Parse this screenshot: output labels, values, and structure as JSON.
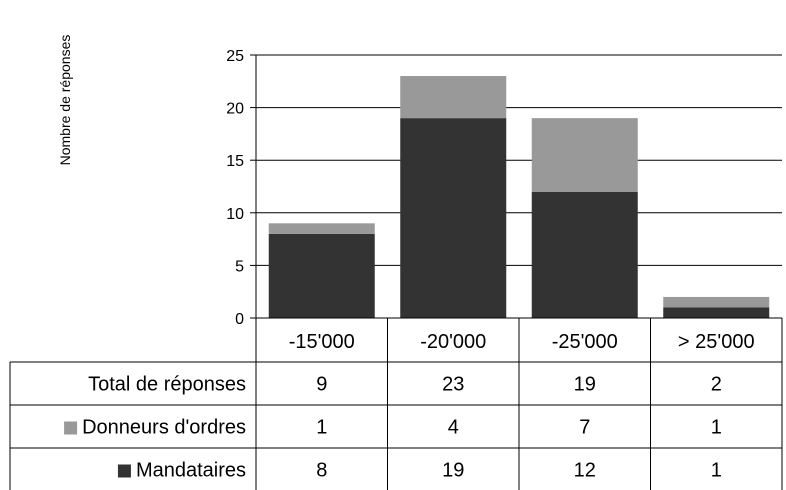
{
  "chart_data": {
    "type": "bar",
    "stacked": true,
    "title": "",
    "xlabel": "",
    "ylabel": "Nombre de réponses",
    "ylim": [
      0,
      25
    ],
    "yticks": [
      0,
      5,
      10,
      15,
      20,
      25
    ],
    "categories": [
      "-15'000",
      "-20'000",
      "-25'000",
      "> 25'000"
    ],
    "series": [
      {
        "name": "Mandataires",
        "values": [
          8,
          19,
          12,
          1
        ],
        "color": "#333333"
      },
      {
        "name": "Donneurs d'ordres",
        "values": [
          1,
          4,
          7,
          1
        ],
        "color": "#999999"
      }
    ],
    "grid": true,
    "legend": "in data table",
    "data_table": {
      "rows": [
        {
          "label": "Total de réponses",
          "values": [
            "9",
            "23",
            "19",
            "2"
          ],
          "swatch": ""
        },
        {
          "label": "Donneurs d'ordres",
          "values": [
            "1",
            "4",
            "7",
            "1"
          ],
          "swatch": "#999999"
        },
        {
          "label": "Mandataires",
          "values": [
            "8",
            "19",
            "12",
            "1"
          ],
          "swatch": "#333333"
        }
      ]
    }
  }
}
